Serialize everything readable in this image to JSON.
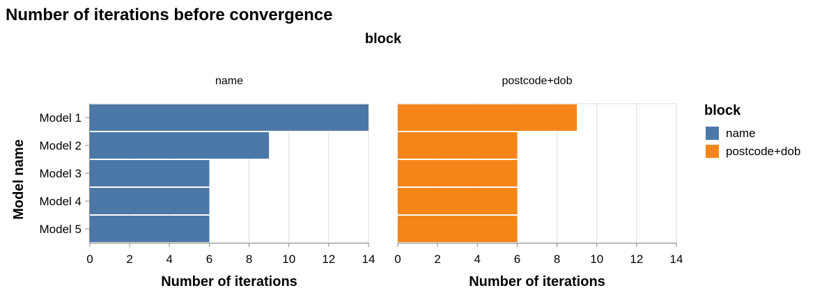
{
  "chart_data": {
    "type": "bar",
    "title": "Number of iterations before convergence",
    "facet_title": "block",
    "facets": [
      "name",
      "postcode+dob"
    ],
    "categories": [
      "Model 1",
      "Model 2",
      "Model 3",
      "Model 4",
      "Model 5"
    ],
    "series": [
      {
        "name": "name",
        "color": "#4c78a8",
        "values": [
          14,
          9,
          6,
          6,
          6
        ]
      },
      {
        "name": "postcode+dob",
        "color": "#f58518",
        "values": [
          9,
          6,
          6,
          6,
          6
        ]
      }
    ],
    "xlabel": "Number of iterations",
    "ylabel": "Model name",
    "xlim": [
      0,
      14
    ],
    "xticks": [
      "0",
      "2",
      "4",
      "6",
      "8",
      "10",
      "12",
      "14"
    ],
    "grid": true,
    "orientation": "horizontal",
    "legend": {
      "title": "block",
      "position": "right",
      "items": [
        "name",
        "postcode+dob"
      ]
    }
  }
}
